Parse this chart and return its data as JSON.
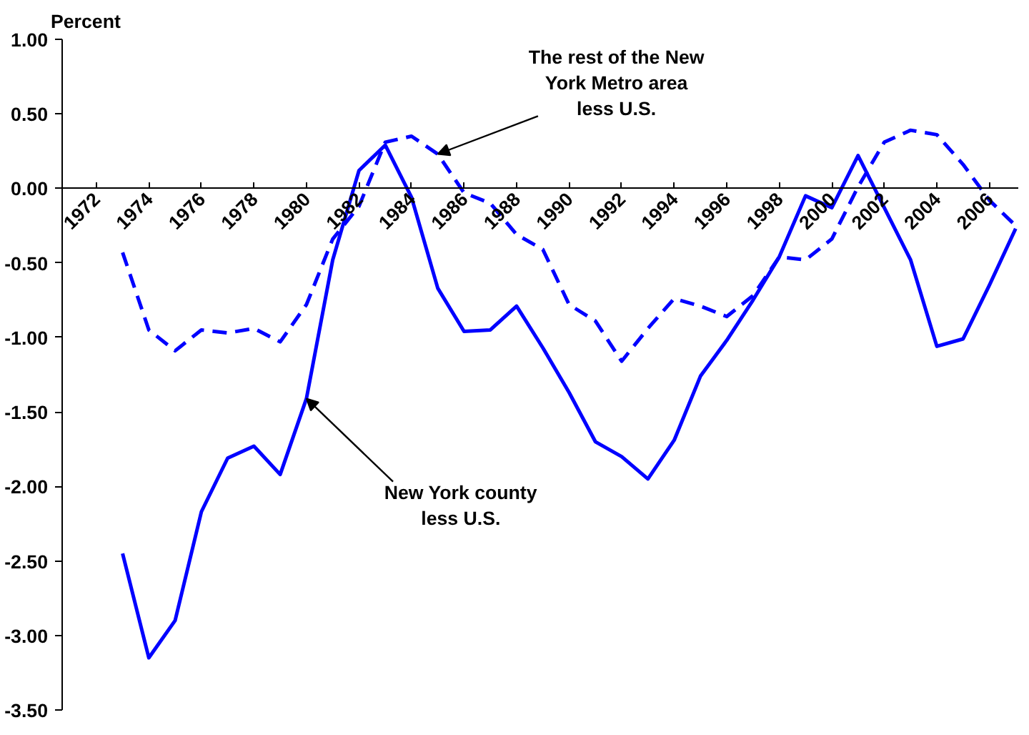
{
  "chart_data": {
    "type": "line",
    "ylabel": "Percent",
    "x": [
      1973,
      1974,
      1975,
      1976,
      1977,
      1978,
      1979,
      1980,
      1981,
      1982,
      1983,
      1984,
      1985,
      1986,
      1987,
      1988,
      1989,
      1990,
      1991,
      1992,
      1993,
      1994,
      1995,
      1996,
      1997,
      1998,
      1999,
      2000,
      2001,
      2002,
      2003,
      2004,
      2005,
      2006,
      2007
    ],
    "series": [
      {
        "color": "#0000ff",
        "line_style": "solid",
        "values": [
          -2.45,
          -3.15,
          -2.9,
          -2.17,
          -1.81,
          -1.73,
          -1.92,
          -1.41,
          -0.48,
          0.12,
          0.29,
          -0.06,
          -0.67,
          -0.96,
          -0.95,
          -0.79,
          -1.07,
          -1.37,
          -1.7,
          -1.8,
          -1.95,
          -1.69,
          -1.26,
          -1.02,
          -0.75,
          -0.46,
          -0.05,
          -0.13,
          0.22,
          -0.13,
          -0.48,
          -1.06,
          -1.01,
          -0.65,
          -0.27
        ]
      },
      {
        "color": "#0000ff",
        "line_style": "dashed",
        "values": [
          -0.43,
          -0.95,
          -1.09,
          -0.95,
          -0.97,
          -0.94,
          -1.03,
          -0.78,
          -0.34,
          -0.12,
          0.31,
          0.35,
          0.23,
          -0.03,
          -0.1,
          -0.31,
          -0.41,
          -0.78,
          -0.89,
          -1.16,
          -0.94,
          -0.74,
          -0.79,
          -0.86,
          -0.72,
          -0.46,
          -0.48,
          -0.34,
          0.01,
          0.31,
          0.39,
          0.36,
          0.16,
          -0.08,
          -0.25
        ]
      }
    ],
    "annotations": [
      {
        "text": "The rest of the New\nYork Metro area\nless U.S.",
        "x": 1985,
        "y": 0.23
      },
      {
        "text": "New York county\nless U.S.",
        "x": 1980,
        "y": -1.41
      }
    ],
    "xlim": [
      1970.7,
      2007.1
    ],
    "xticks": [
      1972,
      1974,
      1976,
      1978,
      1980,
      1982,
      1984,
      1986,
      1988,
      1990,
      1992,
      1994,
      1996,
      1998,
      2000,
      2002,
      2004,
      2006
    ],
    "ylim": [
      -3.5,
      1.0
    ],
    "yticks": [
      {
        "value": 1.0,
        "label": "1.00"
      },
      {
        "value": 0.5,
        "label": "0.50"
      },
      {
        "value": 0.0,
        "label": "0.00"
      },
      {
        "value": -0.5,
        "label": "-0.50"
      },
      {
        "value": -1.0,
        "label": "-1.00"
      },
      {
        "value": -1.5,
        "label": "-1.50"
      },
      {
        "value": -2.0,
        "label": "-2.00"
      },
      {
        "value": -2.5,
        "label": "-2.50"
      },
      {
        "value": -3.0,
        "label": "-3.00"
      },
      {
        "value": -3.5,
        "label": "-3.50"
      }
    ],
    "grid": false
  }
}
